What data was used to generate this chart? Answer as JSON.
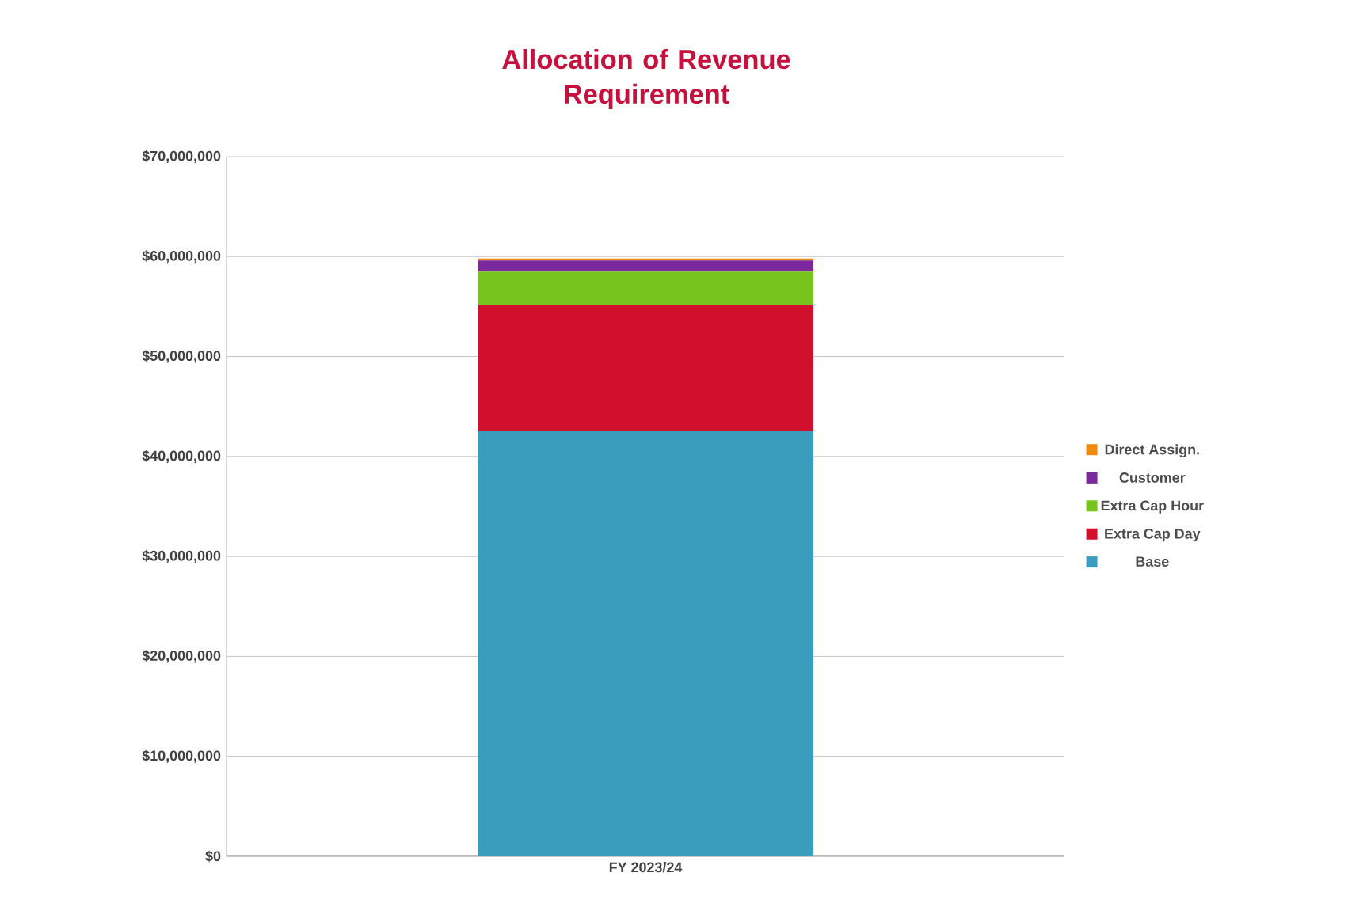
{
  "chart_data": {
    "type": "bar",
    "title": "Allocation of Revenue Requirement",
    "stacked": true,
    "categories": [
      "FY 2023/24"
    ],
    "series": [
      {
        "name": "Base",
        "color": "#3a9dbd",
        "values": [
          42600000
        ]
      },
      {
        "name": "Extra Cap Day",
        "color": "#d0102c",
        "values": [
          12600000
        ]
      },
      {
        "name": "Extra Cap Hour",
        "color": "#76c41c",
        "values": [
          3300000
        ]
      },
      {
        "name": "Customer",
        "color": "#7a2a9a",
        "values": [
          1100000
        ]
      },
      {
        "name": "Direct Assign.",
        "color": "#f08a10",
        "values": [
          200000
        ]
      }
    ],
    "ylim": [
      0,
      70000000
    ],
    "yticks": [
      {
        "value": 0,
        "label": "$0"
      },
      {
        "value": 10000000,
        "label": "$10,000,000"
      },
      {
        "value": 20000000,
        "label": "$20,000,000"
      },
      {
        "value": 30000000,
        "label": "$30,000,000"
      },
      {
        "value": 40000000,
        "label": "$40,000,000"
      },
      {
        "value": 50000000,
        "label": "$50,000,000"
      },
      {
        "value": 60000000,
        "label": "$60,000,000"
      },
      {
        "value": 70000000,
        "label": "$70,000,000"
      }
    ],
    "grid": "y",
    "legend": "right"
  }
}
